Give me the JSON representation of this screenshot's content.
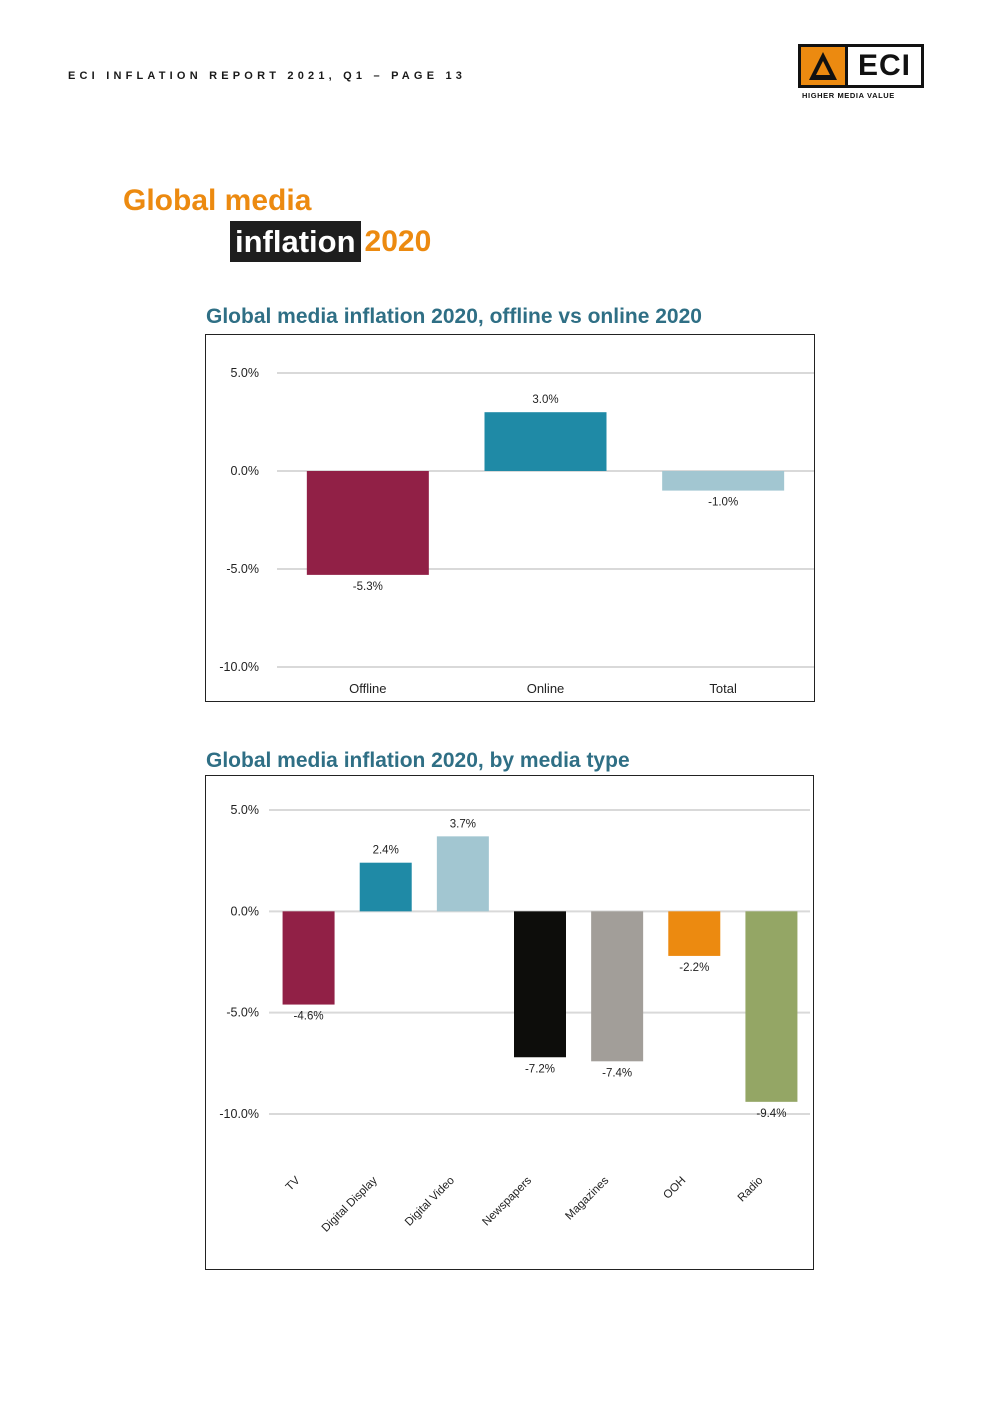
{
  "header": {
    "report_label": "ECI INFLATION REPORT 2021, Q1  – PAGE 13"
  },
  "logo": {
    "text": "ECI",
    "tagline": "HIGHER MEDIA VALUE",
    "colors": {
      "accent": "#ec8a10",
      "dark": "#111111"
    }
  },
  "page_title": {
    "line1": "Global media",
    "line2_highlight": "inflation",
    "line2_year": "2020"
  },
  "colors": {
    "title_orange": "#ec8a10",
    "chart_title_teal": "#2f6f85",
    "gridline": "#d9d9d9"
  },
  "chart_data": [
    {
      "type": "bar",
      "title": "Global media inflation 2020, offline vs online 2020",
      "categories": [
        "Offline",
        "Online",
        "Total"
      ],
      "values": [
        -5.3,
        3.0,
        -1.0
      ],
      "data_labels": [
        "-5.3%",
        "3.0%",
        "-1.0%"
      ],
      "bar_colors": [
        "#912046",
        "#1f8aa6",
        "#a2c6d1"
      ],
      "y_ticks": [
        5.0,
        0.0,
        -5.0,
        -10.0
      ],
      "y_tick_labels": [
        "5.0%",
        "0.0%",
        "-5.0%",
        "-10.0%"
      ],
      "ylim": [
        -10,
        5
      ],
      "xlabel": "",
      "ylabel": "",
      "grid": true,
      "legend": false
    },
    {
      "type": "bar",
      "title": "Global media inflation 2020, by media type",
      "categories": [
        "TV",
        "Digital Display",
        "Digital Video",
        "Newspapers",
        "Magazines",
        "OOH",
        "Radio"
      ],
      "values": [
        -4.6,
        2.4,
        3.7,
        -7.2,
        -7.4,
        -2.2,
        -9.4
      ],
      "data_labels": [
        "-4.6%",
        "2.4%",
        "3.7%",
        "-7.2%",
        "-7.4%",
        "-2.2%",
        "-9.4%"
      ],
      "bar_colors": [
        "#912046",
        "#1f8aa6",
        "#a2c6d1",
        "#0d0d0b",
        "#a29e99",
        "#ec8a10",
        "#94a665"
      ],
      "y_ticks": [
        5.0,
        0.0,
        -5.0,
        -10.0
      ],
      "y_tick_labels": [
        "5.0%",
        "0.0%",
        "-5.0%",
        "-10.0%"
      ],
      "ylim": [
        -10,
        5
      ],
      "xlabel": "",
      "ylabel": "",
      "x_tick_rotation": -45,
      "grid": true,
      "legend": false
    }
  ]
}
